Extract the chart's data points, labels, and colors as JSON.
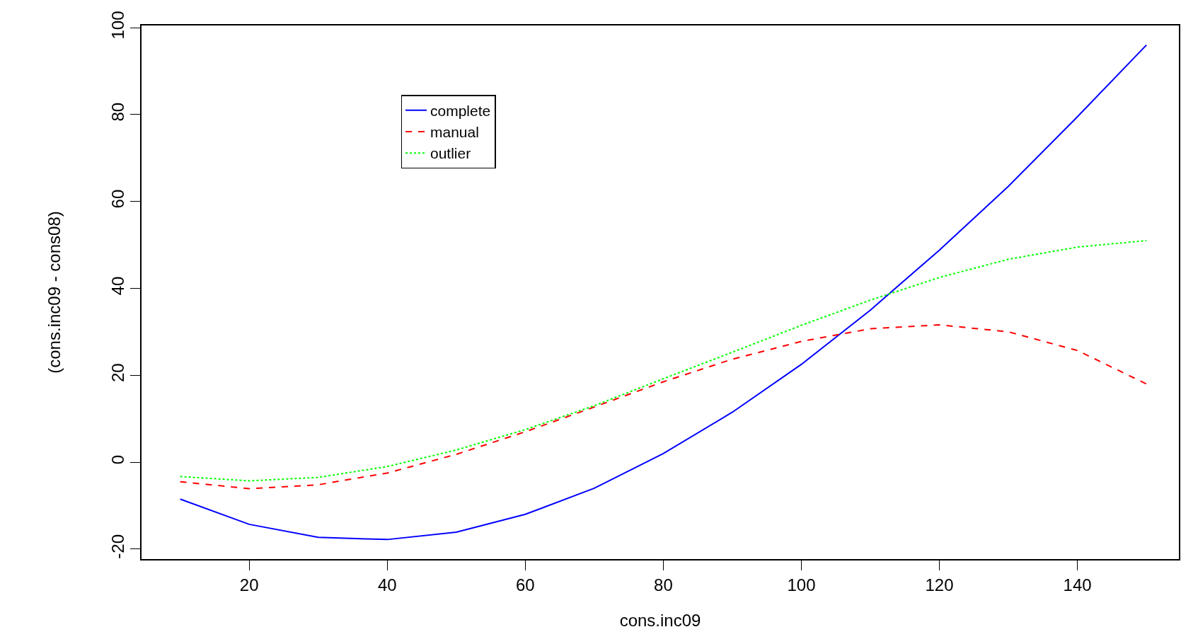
{
  "chart_data": {
    "type": "line",
    "xlabel": "cons.inc09",
    "ylabel": "(cons.inc09 - cons08)",
    "x": [
      10,
      20,
      30,
      40,
      50,
      60,
      70,
      80,
      90,
      100,
      110,
      120,
      130,
      140,
      150
    ],
    "series": [
      {
        "name": "complete",
        "color": "#0000ff",
        "line_style": "solid",
        "values": [
          -8.5,
          -14.3,
          -17.3,
          -17.8,
          -16.1,
          -12,
          -6,
          2,
          11.5,
          22.5,
          35,
          48.8,
          63.5,
          79.5,
          96
        ]
      },
      {
        "name": "manual",
        "color": "#ff0000",
        "line_style": "dashed",
        "values": [
          -4.5,
          -6.1,
          -5.2,
          -2.5,
          1.8,
          7,
          12.7,
          18.5,
          23.7,
          27.8,
          30.7,
          31.6,
          30,
          25.7,
          18
        ]
      },
      {
        "name": "outlier",
        "color": "#00ff00",
        "line_style": "dotted",
        "values": [
          -3.3,
          -4.3,
          -3.5,
          -1,
          2.8,
          7.5,
          13,
          19.2,
          25.3,
          31.5,
          37.3,
          42.5,
          46.7,
          49.5,
          51
        ]
      }
    ],
    "xlim": [
      4.4,
      154.7
    ],
    "ylim": [
      -22.3,
      100.5
    ],
    "xticks": [
      20,
      40,
      60,
      80,
      100,
      120,
      140
    ],
    "yticks": [
      -20,
      0,
      20,
      40,
      60,
      80,
      100
    ],
    "grid": false,
    "legend": "top left",
    "marker": "none"
  }
}
